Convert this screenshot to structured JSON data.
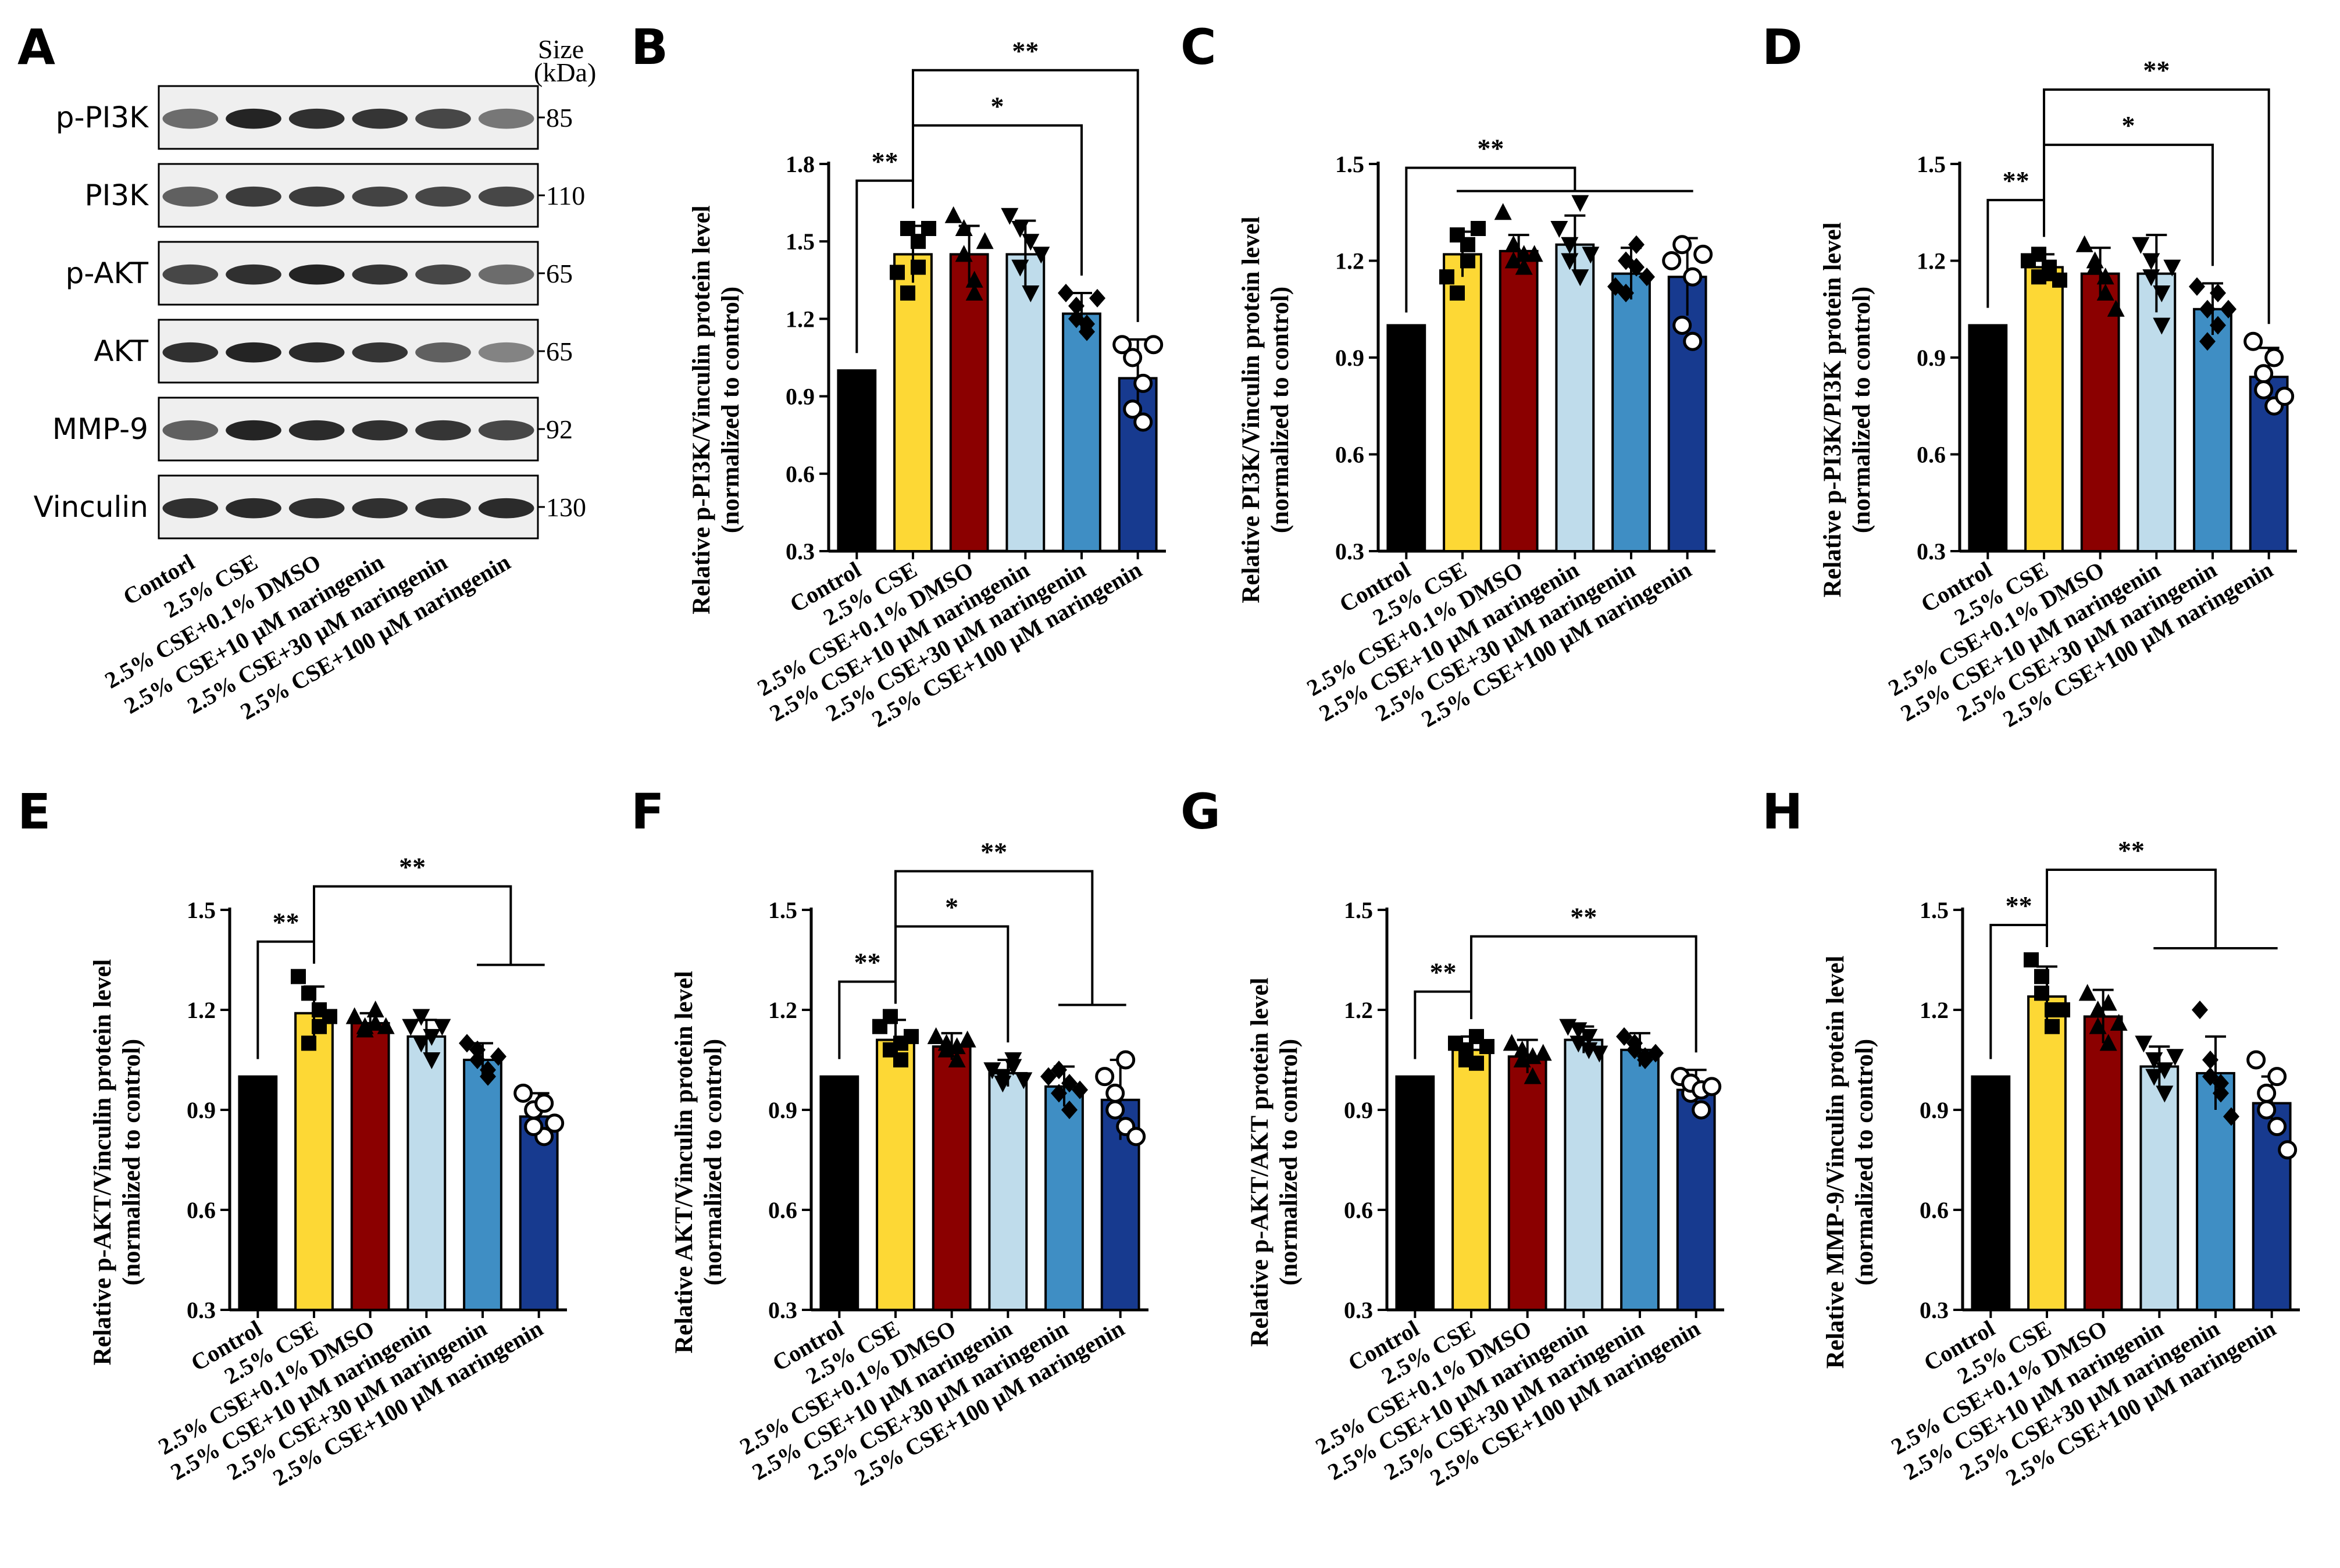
{
  "blot": {
    "panel_letter": "A",
    "size_header": [
      "Size",
      "(kDa)"
    ],
    "rows": [
      {
        "label": "p-PI3K",
        "size": "85"
      },
      {
        "label": "PI3K",
        "size": "110"
      },
      {
        "label": "p-AKT",
        "size": "65"
      },
      {
        "label": "AKT",
        "size": "65"
      },
      {
        "label": "MMP-9",
        "size": "92"
      },
      {
        "label": "Vinculin",
        "size": "130"
      }
    ],
    "lanes": [
      "Contorl",
      "2.5% CSE",
      "2.5% CSE+0.1% DMSO",
      "2.5% CSE+10 μM naringenin",
      "2.5% CSE+30 μM naringenin",
      "2.5% CSE+100 μM naringenin"
    ]
  },
  "colors": {
    "bars": [
      "#000000",
      "#FDD835",
      "#8B0000",
      "#BFDCEB",
      "#3F8EC4",
      "#173A8F"
    ],
    "points_fill": [
      "#000000",
      "#000000",
      "#000000",
      "#000000",
      "#000000",
      "#ffffff"
    ]
  },
  "markers": [
    "none",
    "square",
    "triangle",
    "triangle-down",
    "diamond",
    "circle"
  ],
  "chart_data": [
    {
      "panel": "B",
      "type": "bar",
      "ylabel": "Relative p-PI3K/Vinculin protein level",
      "ylabel2": "(normalized to control)",
      "ylim": [
        0.3,
        1.8
      ],
      "yticks": [
        "0.3",
        "0.6",
        "0.9",
        "1.2",
        "1.5",
        "1.8"
      ],
      "categories": [
        "Control",
        "2.5% CSE",
        "2.5% CSE+0.1% DMSO",
        "2.5% CSE+10 μM naringenin",
        "2.5% CSE+30 μM naringenin",
        "2.5% CSE+100 μM naringenin"
      ],
      "values": [
        1.0,
        1.45,
        1.45,
        1.45,
        1.22,
        0.97
      ],
      "errors": [
        0,
        0.11,
        0.11,
        0.13,
        0.08,
        0.15
      ],
      "points": [
        [],
        [
          1.38,
          1.55,
          1.5,
          1.3,
          1.4,
          1.55
        ],
        [
          1.6,
          1.45,
          1.35,
          1.55,
          1.3,
          1.5
        ],
        [
          1.6,
          1.4,
          1.3,
          1.55,
          1.5,
          1.45
        ],
        [
          1.3,
          1.2,
          1.15,
          1.25,
          1.18,
          1.28
        ],
        [
          1.1,
          1.05,
          0.95,
          0.85,
          0.8,
          1.1
        ]
      ],
      "significance": [
        {
          "label": "**",
          "from": 0,
          "to": [
            1
          ]
        },
        {
          "label": "*",
          "from": 1,
          "to": [
            4
          ]
        },
        {
          "label": "**",
          "from": 1,
          "to": [
            5
          ]
        }
      ]
    },
    {
      "panel": "C",
      "type": "bar",
      "ylabel": "Relative PI3K/Vinculin protein level",
      "ylabel2": "(normalized to control)",
      "ylim": [
        0.3,
        1.5
      ],
      "yticks": [
        "0.3",
        "0.6",
        "0.9",
        "1.2",
        "1.5"
      ],
      "categories": [
        "Control",
        "2.5% CSE",
        "2.5% CSE+0.1% DMSO",
        "2.5% CSE+10 μM naringenin",
        "2.5% CSE+30 μM naringenin",
        "2.5% CSE+100 μM naringenin"
      ],
      "values": [
        1.0,
        1.22,
        1.23,
        1.25,
        1.16,
        1.15
      ],
      "errors": [
        0,
        0.07,
        0.05,
        0.09,
        0.08,
        0.12
      ],
      "points": [
        [],
        [
          1.15,
          1.28,
          1.25,
          1.1,
          1.2,
          1.3
        ],
        [
          1.35,
          1.2,
          1.22,
          1.25,
          1.18,
          1.22
        ],
        [
          1.3,
          1.2,
          1.38,
          1.25,
          1.15,
          1.22
        ],
        [
          1.12,
          1.2,
          1.25,
          1.1,
          1.18,
          1.15
        ],
        [
          1.2,
          1.25,
          1.15,
          1.0,
          0.95,
          1.22
        ]
      ],
      "significance": [
        {
          "label": "**",
          "from": 0,
          "to": [
            1,
            2,
            3,
            4,
            5
          ]
        }
      ]
    },
    {
      "panel": "D",
      "type": "bar",
      "ylabel": "Relative p-PI3K/PI3K protein level",
      "ylabel2": "(normalized to control)",
      "ylim": [
        0.3,
        1.5
      ],
      "yticks": [
        "0.3",
        "0.6",
        "0.9",
        "1.2",
        "1.5"
      ],
      "categories": [
        "Control",
        "2.5% CSE",
        "2.5% CSE+0.1% DMSO",
        "2.5% CSE+10 μM naringenin",
        "2.5% CSE+30 μM naringenin",
        "2.5% CSE+100 μM naringenin"
      ],
      "values": [
        1.0,
        1.18,
        1.16,
        1.16,
        1.05,
        0.84
      ],
      "errors": [
        0,
        0.04,
        0.08,
        0.12,
        0.08,
        0.09
      ],
      "points": [
        [],
        [
          1.2,
          1.15,
          1.18,
          1.22,
          1.16,
          1.14
        ],
        [
          1.25,
          1.18,
          1.1,
          1.2,
          1.15,
          1.05
        ],
        [
          1.25,
          1.15,
          1.1,
          1.2,
          1.0,
          1.18
        ],
        [
          1.12,
          1.05,
          1.0,
          0.95,
          1.1,
          1.05
        ],
        [
          0.95,
          0.85,
          0.75,
          0.8,
          0.9,
          0.78
        ]
      ],
      "significance": [
        {
          "label": "**",
          "from": 0,
          "to": [
            1
          ]
        },
        {
          "label": "*",
          "from": 1,
          "to": [
            4
          ]
        },
        {
          "label": "**",
          "from": 1,
          "to": [
            5
          ]
        }
      ]
    },
    {
      "panel": "E",
      "type": "bar",
      "ylabel": "Relative p-AKT/Vinculin protein level",
      "ylabel2": "(normalized to control)",
      "ylim": [
        0.3,
        1.5
      ],
      "yticks": [
        "0.3",
        "0.6",
        "0.9",
        "1.2",
        "1.5"
      ],
      "categories": [
        "Control",
        "2.5% CSE",
        "2.5% CSE+0.1% DMSO",
        "2.5% CSE+10 μM naringenin",
        "2.5% CSE+30 μM naringenin",
        "2.5% CSE+100 μM naringenin"
      ],
      "values": [
        1.0,
        1.19,
        1.16,
        1.12,
        1.05,
        0.88
      ],
      "errors": [
        0,
        0.08,
        0.03,
        0.05,
        0.05,
        0.07
      ],
      "points": [
        [],
        [
          1.3,
          1.25,
          1.15,
          1.1,
          1.2,
          1.18
        ],
        [
          1.18,
          1.15,
          1.2,
          1.14,
          1.16,
          1.15
        ],
        [
          1.15,
          1.1,
          1.05,
          1.18,
          1.12,
          1.15
        ],
        [
          1.1,
          1.05,
          1.0,
          1.08,
          1.02,
          1.06
        ],
        [
          0.95,
          0.9,
          0.82,
          0.85,
          0.92,
          0.86
        ]
      ],
      "significance": [
        {
          "label": "**",
          "from": 0,
          "to": [
            1
          ]
        },
        {
          "label": "**",
          "from": 1,
          "to": [
            4,
            5
          ]
        }
      ]
    },
    {
      "panel": "F",
      "type": "bar",
      "ylabel": "Relative AKT/Vinculin protein level",
      "ylabel2": "(normalized to control)",
      "ylim": [
        0.3,
        1.5
      ],
      "yticks": [
        "0.3",
        "0.6",
        "0.9",
        "1.2",
        "1.5"
      ],
      "categories": [
        "Control",
        "2.5% CSE",
        "2.5% CSE+0.1% DMSO",
        "2.5% CSE+10 μM naringenin",
        "2.5% CSE+30 μM naringenin",
        "2.5% CSE+100 μM naringenin"
      ],
      "values": [
        1.0,
        1.11,
        1.09,
        1.01,
        0.97,
        0.93
      ],
      "errors": [
        0,
        0.06,
        0.04,
        0.04,
        0.06,
        0.12
      ],
      "points": [
        [],
        [
          1.15,
          1.08,
          1.05,
          1.18,
          1.1,
          1.12
        ],
        [
          1.12,
          1.08,
          1.05,
          1.1,
          1.09,
          1.11
        ],
        [
          1.02,
          0.98,
          1.05,
          1.0,
          1.03,
          0.99
        ],
        [
          1.0,
          0.95,
          0.9,
          1.02,
          0.98,
          0.96
        ],
        [
          1.0,
          0.95,
          0.85,
          0.9,
          1.05,
          0.82
        ]
      ],
      "significance": [
        {
          "label": "**",
          "from": 0,
          "to": [
            1
          ]
        },
        {
          "label": "*",
          "from": 1,
          "to": [
            3
          ]
        },
        {
          "label": "**",
          "from": 1,
          "to": [
            4,
            5
          ]
        }
      ]
    },
    {
      "panel": "G",
      "type": "bar",
      "ylabel": "Relative p-AKT/AKT protein level",
      "ylabel2": "(normalized to control)",
      "ylim": [
        0.3,
        1.5
      ],
      "yticks": [
        "0.3",
        "0.6",
        "0.9",
        "1.2",
        "1.5"
      ],
      "categories": [
        "Control",
        "2.5% CSE",
        "2.5% CSE+0.1% DMSO",
        "2.5% CSE+10 μM naringenin",
        "2.5% CSE+30 μM naringenin",
        "2.5% CSE+100 μM naringenin"
      ],
      "values": [
        1.0,
        1.08,
        1.06,
        1.11,
        1.08,
        0.96
      ],
      "errors": [
        0,
        0.04,
        0.05,
        0.04,
        0.05,
        0.06
      ],
      "points": [
        [],
        [
          1.1,
          1.05,
          1.12,
          1.08,
          1.04,
          1.09
        ],
        [
          1.1,
          1.05,
          1.0,
          1.08,
          1.06,
          1.07
        ],
        [
          1.15,
          1.1,
          1.08,
          1.14,
          1.12,
          1.07
        ],
        [
          1.12,
          1.08,
          1.05,
          1.1,
          1.06,
          1.07
        ],
        [
          1.0,
          0.95,
          0.9,
          0.98,
          0.96,
          0.97
        ]
      ],
      "significance": [
        {
          "label": "**",
          "from": 0,
          "to": [
            1
          ]
        },
        {
          "label": "**",
          "from": 1,
          "to": [
            5
          ]
        }
      ]
    },
    {
      "panel": "H",
      "type": "bar",
      "ylabel": "Relative MMP-9/Vinculin protein level",
      "ylabel2": "(normalized to control)",
      "ylim": [
        0.3,
        1.5
      ],
      "yticks": [
        "0.3",
        "0.6",
        "0.9",
        "1.2",
        "1.5"
      ],
      "categories": [
        "Control",
        "2.5% CSE",
        "2.5% CSE+0.1% DMSO",
        "2.5% CSE+10 μM naringenin",
        "2.5% CSE+30 μM naringenin",
        "2.5% CSE+100 μM naringenin"
      ],
      "values": [
        1.0,
        1.24,
        1.18,
        1.03,
        1.01,
        0.92
      ],
      "errors": [
        0,
        0.09,
        0.08,
        0.06,
        0.11,
        0.08
      ],
      "points": [
        [],
        [
          1.35,
          1.25,
          1.15,
          1.3,
          1.2,
          1.2
        ],
        [
          1.25,
          1.15,
          1.1,
          1.2,
          1.22,
          1.16
        ],
        [
          1.1,
          1.0,
          0.95,
          1.05,
          1.02,
          1.06
        ],
        [
          1.2,
          1.0,
          0.95,
          1.05,
          0.98,
          0.88
        ],
        [
          1.05,
          0.95,
          0.85,
          0.9,
          1.0,
          0.78
        ]
      ],
      "significance": [
        {
          "label": "**",
          "from": 0,
          "to": [
            1
          ]
        },
        {
          "label": "**",
          "from": 1,
          "to": [
            3,
            4,
            5
          ]
        }
      ]
    }
  ]
}
